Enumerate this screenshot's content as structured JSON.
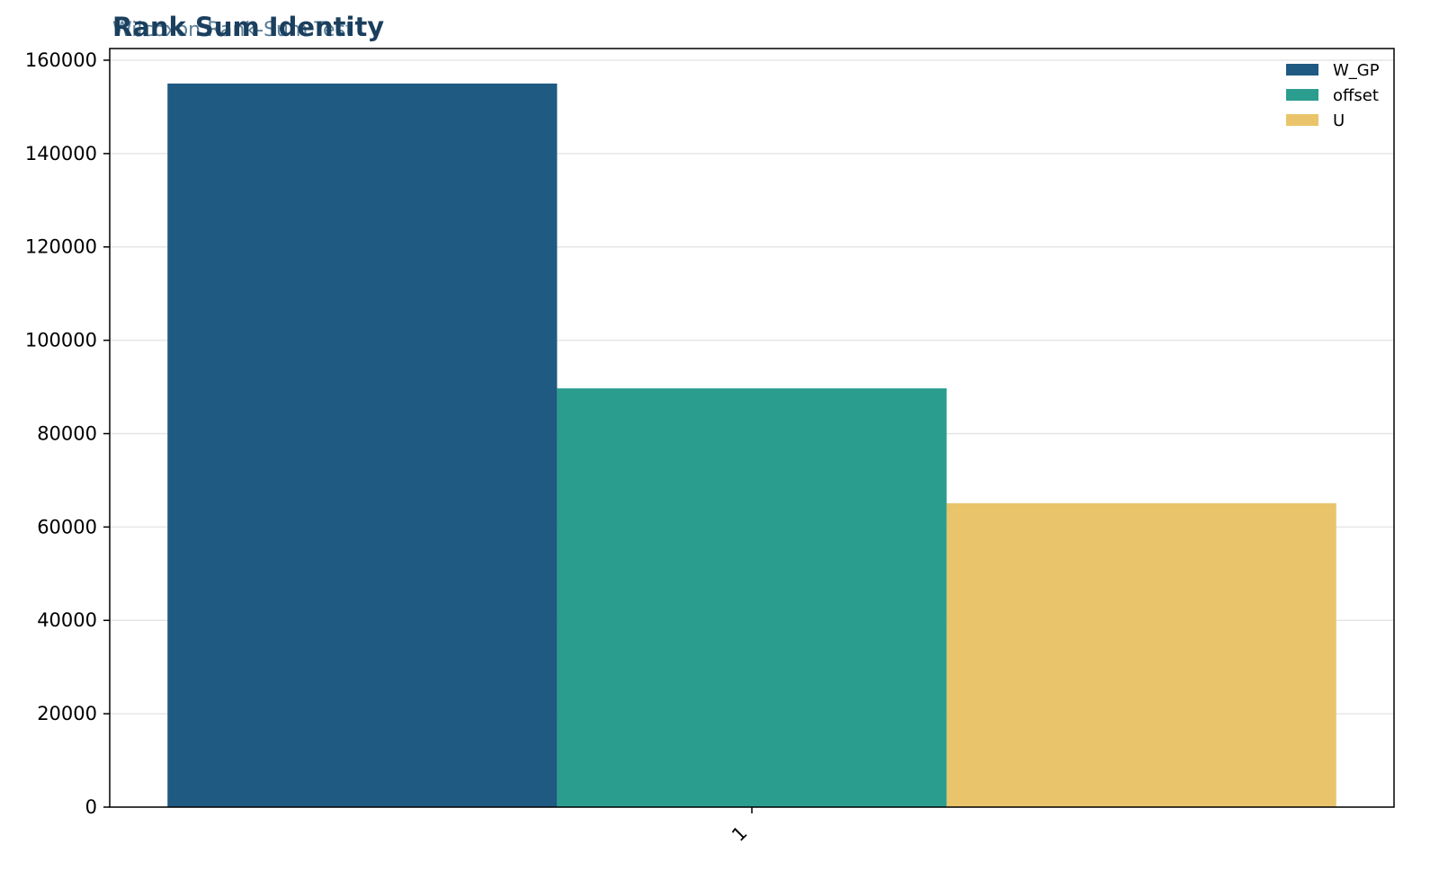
{
  "chart_data": {
    "type": "bar",
    "title": "Rank Sum Identity",
    "subtitle": "Wilcoxon Rank-Sum Test",
    "xlabel": "",
    "ylabel": "",
    "categories": [
      "1"
    ],
    "series": [
      {
        "name": "W_GP",
        "values": [
          155000
        ],
        "color": "#1f5a82"
      },
      {
        "name": "offset",
        "values": [
          89700
        ],
        "color": "#2a9d8f"
      },
      {
        "name": "U",
        "values": [
          65100
        ],
        "color": "#e9c46a"
      }
    ],
    "ylim": [
      0,
      162500
    ],
    "yticks": [
      0,
      20000,
      40000,
      60000,
      80000,
      100000,
      120000,
      140000,
      160000
    ],
    "ytick_labels": [
      "0",
      "20000",
      "40000",
      "60000",
      "80000",
      "100000",
      "120000",
      "140000",
      "160000"
    ],
    "grid": "horizontal",
    "legend_position": "top-right",
    "colors": {
      "title": "#1b3f5e",
      "subtitle": "#5a7f99",
      "grid": "#e6e6e6",
      "axis": "#000000"
    }
  }
}
